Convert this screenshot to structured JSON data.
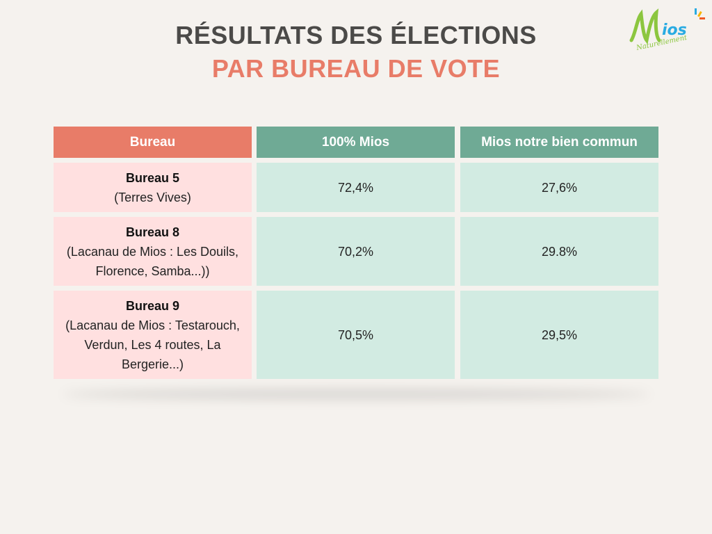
{
  "title": "RÉSULTATS DES ÉLECTIONS",
  "subtitle": "PAR BUREAU DE VOTE",
  "logo": {
    "main": "Mios",
    "tagline": "Naturellement"
  },
  "colors": {
    "header_bureau": "#e87c68",
    "header_list": "#6faa95",
    "row_bureau": "#ffe0e0",
    "row_list": "#d2ebe2"
  },
  "table": {
    "headers": [
      "Bureau",
      "100% Mios",
      "Mios notre bien commun"
    ],
    "rows": [
      {
        "name": "Bureau 5",
        "area": "(Terres Vives)",
        "a": "72,4%",
        "b": "27,6%"
      },
      {
        "name": "Bureau 8",
        "area": "(Lacanau de Mios : Les Douils, Florence, Samba...))",
        "a": "70,2%",
        "b": "29.8%"
      },
      {
        "name": "Bureau 9",
        "area": "(Lacanau de Mios : Testarouch, Verdun, Les 4 routes, La Bergerie...)",
        "a": "70,5%",
        "b": "29,5%"
      }
    ]
  }
}
